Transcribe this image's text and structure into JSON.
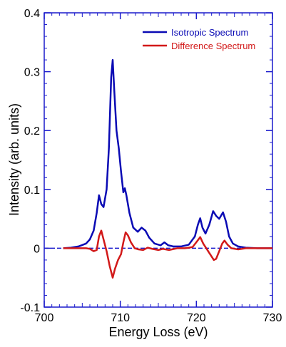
{
  "chart_data": {
    "type": "line",
    "xlabel": "Energy Loss (eV)",
    "ylabel": "Intensity (arb. units)",
    "xlim": [
      700,
      730
    ],
    "ylim": [
      -0.1,
      0.4
    ],
    "x_ticks": [
      700,
      710,
      720,
      730
    ],
    "x_tick_labels": [
      "700",
      "710",
      "720",
      "730"
    ],
    "y_ticks": [
      -0.1,
      0,
      0.1,
      0.2,
      0.3,
      0.4
    ],
    "y_tick_labels": [
      "-0.1",
      "0",
      "0.1",
      "0.2",
      "0.3",
      "0.4"
    ],
    "grid": false,
    "legend_position": "top-right",
    "zero_line": true,
    "series": [
      {
        "name": "Isotropic Spectrum",
        "color": "#0a0ab4",
        "points": [
          [
            702.5,
            0.0
          ],
          [
            703.5,
            0.001
          ],
          [
            704.5,
            0.003
          ],
          [
            705.5,
            0.008
          ],
          [
            706.0,
            0.015
          ],
          [
            706.5,
            0.03
          ],
          [
            706.9,
            0.06
          ],
          [
            707.2,
            0.09
          ],
          [
            707.5,
            0.075
          ],
          [
            707.8,
            0.07
          ],
          [
            708.2,
            0.1
          ],
          [
            708.5,
            0.17
          ],
          [
            708.8,
            0.29
          ],
          [
            709.0,
            0.32
          ],
          [
            709.2,
            0.27
          ],
          [
            709.5,
            0.2
          ],
          [
            709.8,
            0.17
          ],
          [
            710.1,
            0.13
          ],
          [
            710.4,
            0.095
          ],
          [
            710.6,
            0.102
          ],
          [
            710.8,
            0.09
          ],
          [
            711.2,
            0.06
          ],
          [
            711.7,
            0.035
          ],
          [
            712.3,
            0.028
          ],
          [
            712.8,
            0.035
          ],
          [
            713.3,
            0.03
          ],
          [
            713.8,
            0.018
          ],
          [
            714.5,
            0.008
          ],
          [
            715.3,
            0.005
          ],
          [
            715.8,
            0.01
          ],
          [
            716.3,
            0.005
          ],
          [
            717.0,
            0.003
          ],
          [
            718.0,
            0.003
          ],
          [
            719.0,
            0.006
          ],
          [
            719.8,
            0.02
          ],
          [
            720.2,
            0.04
          ],
          [
            720.5,
            0.051
          ],
          [
            720.8,
            0.035
          ],
          [
            721.2,
            0.025
          ],
          [
            721.7,
            0.04
          ],
          [
            722.2,
            0.063
          ],
          [
            722.6,
            0.055
          ],
          [
            723.0,
            0.05
          ],
          [
            723.5,
            0.061
          ],
          [
            723.9,
            0.045
          ],
          [
            724.3,
            0.02
          ],
          [
            724.8,
            0.008
          ],
          [
            725.5,
            0.003
          ],
          [
            726.5,
            0.001
          ],
          [
            728.0,
            0.0
          ],
          [
            730.0,
            0.0
          ]
        ]
      },
      {
        "name": "Difference Spectrum",
        "color": "#d21919",
        "points": [
          [
            702.5,
            0.0
          ],
          [
            704.5,
            0.0
          ],
          [
            705.5,
            0.0
          ],
          [
            706.0,
            -0.001
          ],
          [
            706.5,
            -0.005
          ],
          [
            706.9,
            -0.003
          ],
          [
            707.2,
            0.02
          ],
          [
            707.5,
            0.03
          ],
          [
            707.8,
            0.015
          ],
          [
            708.2,
            -0.005
          ],
          [
            708.6,
            -0.03
          ],
          [
            709.0,
            -0.05
          ],
          [
            709.3,
            -0.035
          ],
          [
            709.7,
            -0.02
          ],
          [
            710.1,
            -0.01
          ],
          [
            710.4,
            0.01
          ],
          [
            710.7,
            0.027
          ],
          [
            711.0,
            0.022
          ],
          [
            711.4,
            0.01
          ],
          [
            711.9,
            0.0
          ],
          [
            712.4,
            -0.002
          ],
          [
            713.0,
            -0.003
          ],
          [
            713.6,
            0.001
          ],
          [
            714.2,
            -0.001
          ],
          [
            715.0,
            -0.003
          ],
          [
            715.6,
            -0.001
          ],
          [
            716.4,
            -0.003
          ],
          [
            717.5,
            0.0
          ],
          [
            718.5,
            0.0
          ],
          [
            719.5,
            0.002
          ],
          [
            720.1,
            0.012
          ],
          [
            720.5,
            0.019
          ],
          [
            720.9,
            0.008
          ],
          [
            721.3,
            0.0
          ],
          [
            721.8,
            -0.01
          ],
          [
            722.3,
            -0.02
          ],
          [
            722.6,
            -0.018
          ],
          [
            723.0,
            -0.005
          ],
          [
            723.4,
            0.008
          ],
          [
            723.7,
            0.013
          ],
          [
            724.1,
            0.006
          ],
          [
            724.6,
            0.0
          ],
          [
            725.5,
            -0.002
          ],
          [
            726.5,
            0.0
          ],
          [
            730.0,
            0.0
          ]
        ]
      }
    ]
  }
}
